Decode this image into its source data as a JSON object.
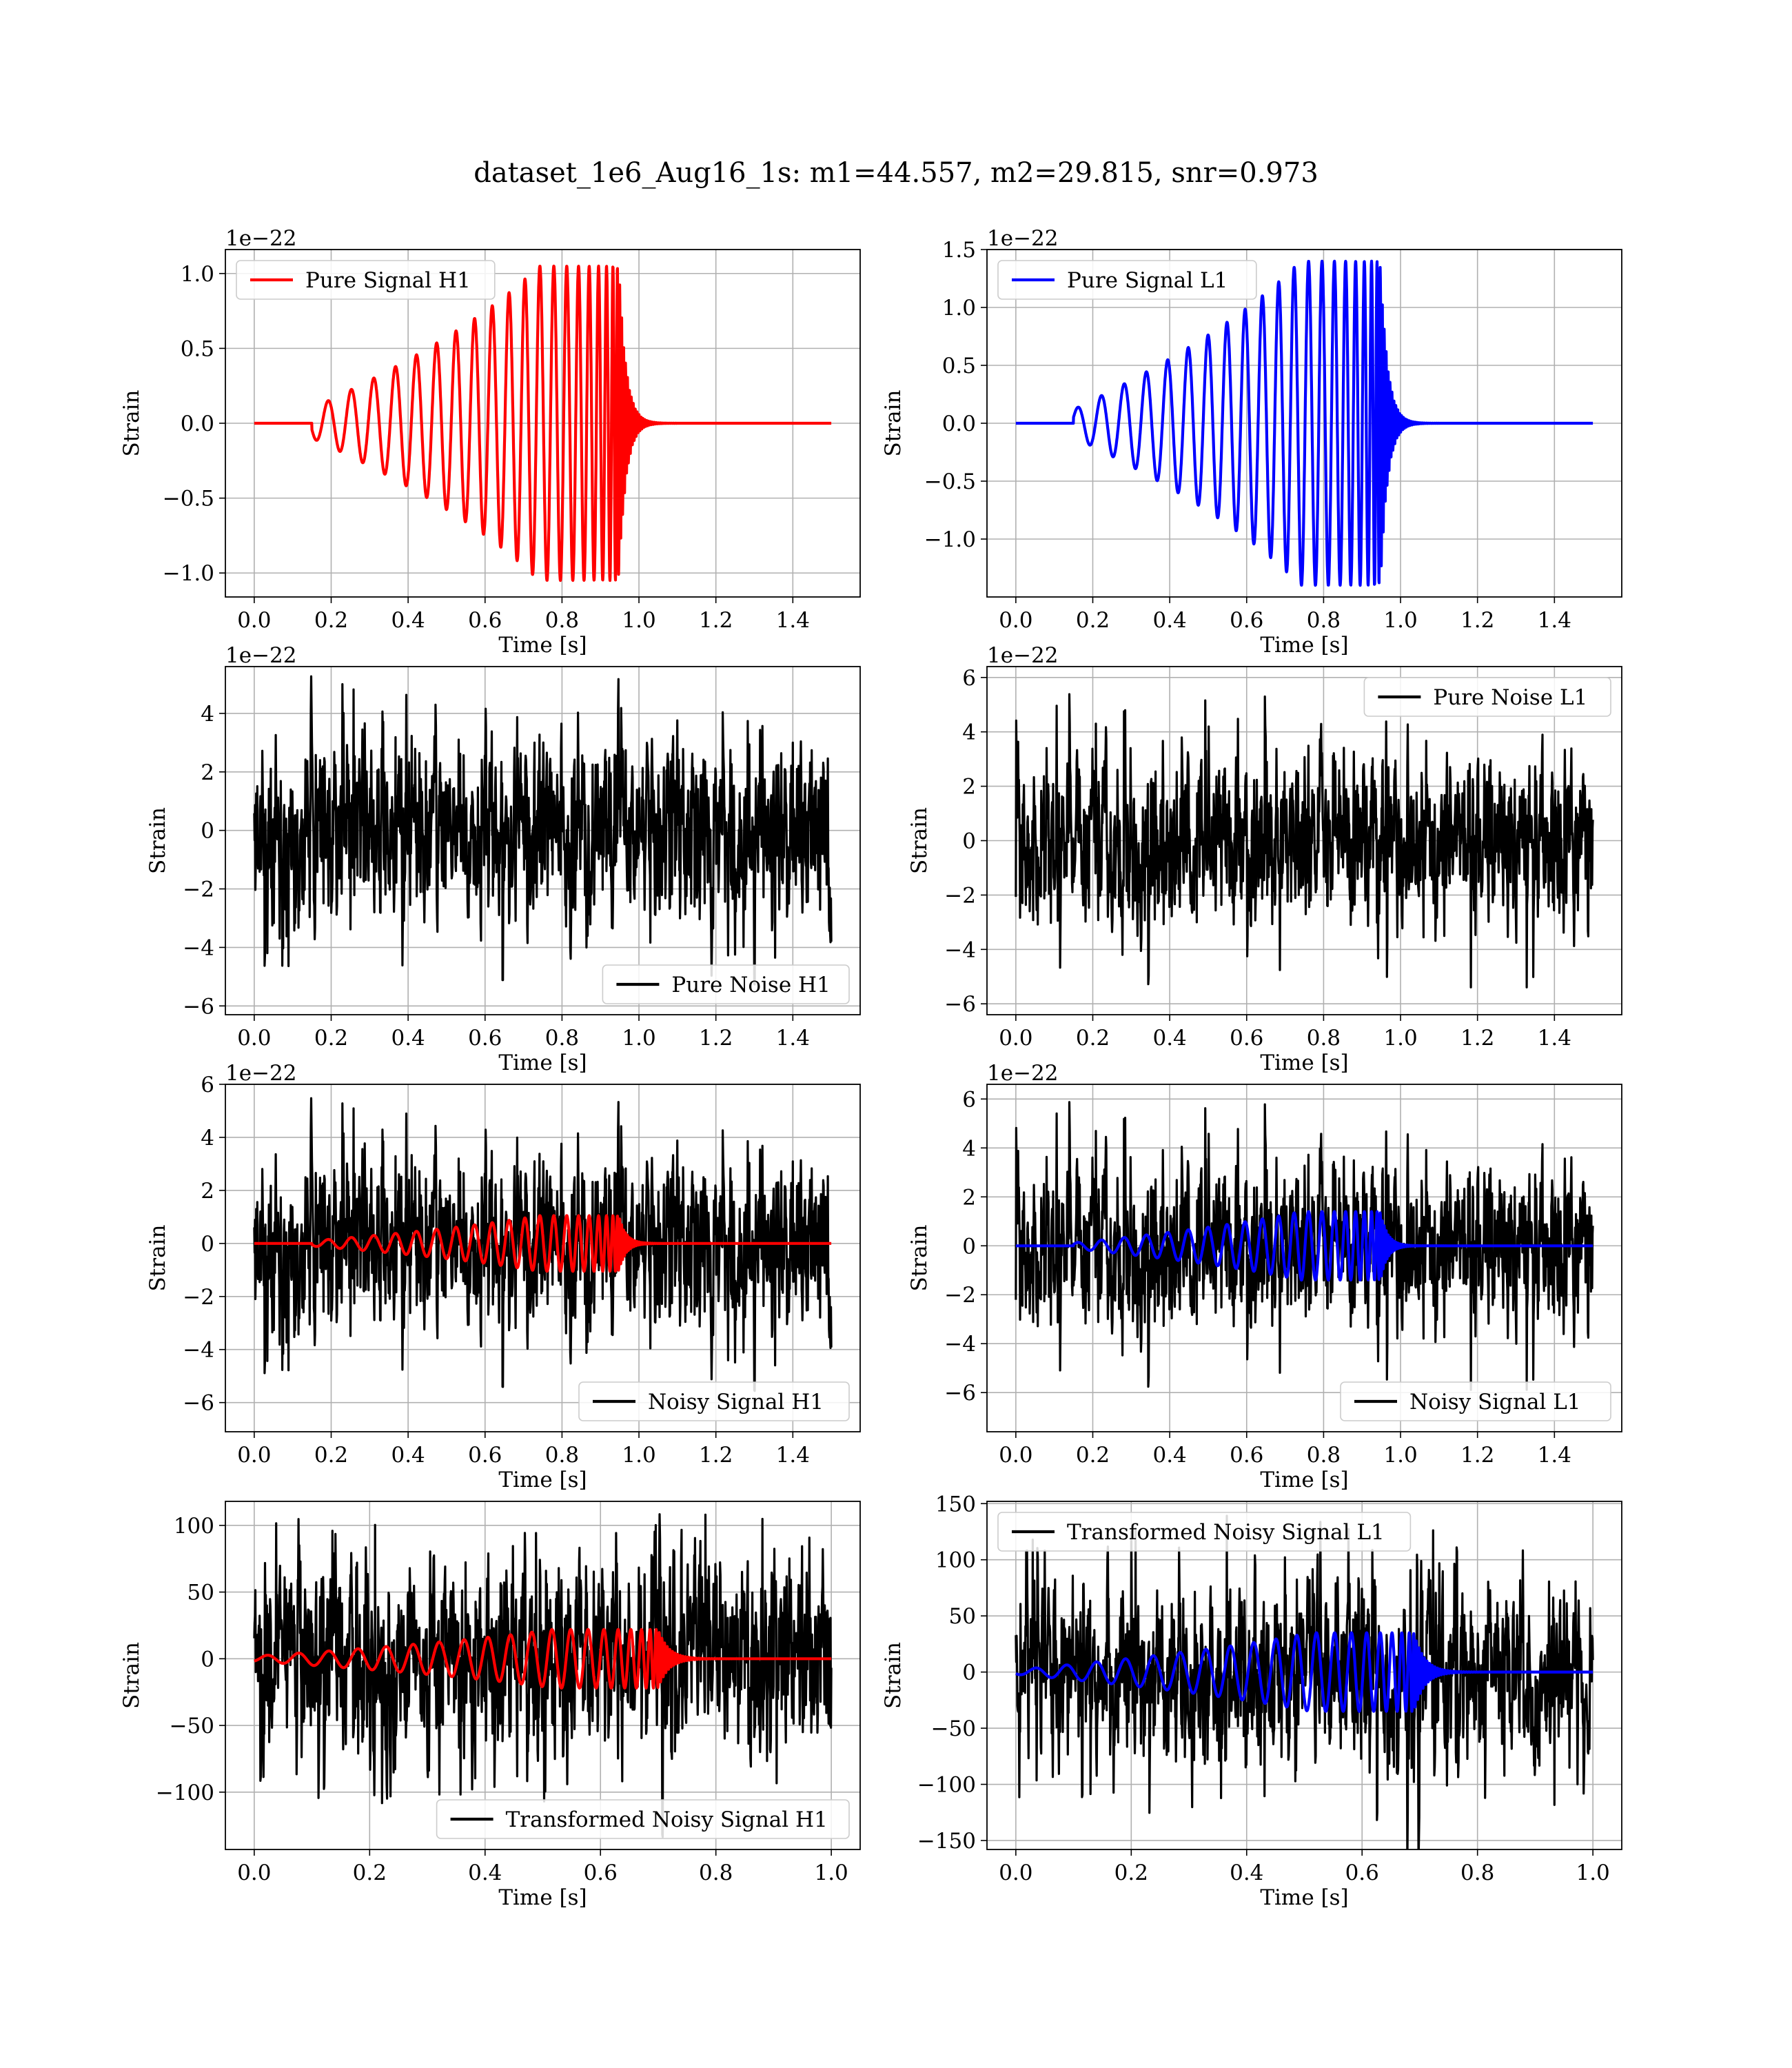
{
  "suptitle": "dataset_1e6_Aug16_1s: m1=44.557, m2=29.815, snr=0.973",
  "colors": {
    "h1_signal": "#ff0000",
    "l1_signal": "#0000ff",
    "noise": "#000000",
    "grid": "#b0b0b0"
  },
  "chart_data": [
    {
      "type": "line",
      "panel": "row1-left",
      "xlabel": "Time [s]",
      "ylabel": "Strain",
      "offset_text": "1e−22",
      "xlim": [
        -0.075,
        1.575
      ],
      "ylim": [
        -1.16,
        1.16
      ],
      "xticks": [
        0.0,
        0.2,
        0.4,
        0.6,
        0.8,
        1.0,
        1.2,
        1.4
      ],
      "xtick_labels": [
        "0.0",
        "0.2",
        "0.4",
        "0.6",
        "0.8",
        "1.0",
        "1.2",
        "1.4"
      ],
      "yticks": [
        -1.0,
        -0.5,
        0.0,
        0.5,
        1.0
      ],
      "ytick_labels": [
        "−1.0",
        "−0.5",
        "0.0",
        "0.5",
        "1.0"
      ],
      "grid": true,
      "legend_loc": "upper left",
      "series": [
        {
          "name": "Pure Signal H1",
          "kind": "chirp",
          "color": "#ff0000",
          "t_start": 0.15,
          "t_merge": 0.948,
          "t_end": 1.5,
          "amp_start": 0.1,
          "amp_merge": 1.05,
          "f_start": 16,
          "f_merge": 200,
          "invert": false,
          "noise_amp": 0
        }
      ]
    },
    {
      "type": "line",
      "panel": "row1-right",
      "xlabel": "Time [s]",
      "ylabel": "Strain",
      "offset_text": "1e−22",
      "xlim": [
        -0.075,
        1.575
      ],
      "ylim": [
        -1.5,
        1.5
      ],
      "xticks": [
        0.0,
        0.2,
        0.4,
        0.6,
        0.8,
        1.0,
        1.2,
        1.4
      ],
      "xtick_labels": [
        "0.0",
        "0.2",
        "0.4",
        "0.6",
        "0.8",
        "1.0",
        "1.2",
        "1.4"
      ],
      "yticks": [
        -1.0,
        -0.5,
        0.0,
        0.5,
        1.0,
        1.5
      ],
      "ytick_labels": [
        "−1.0",
        "−0.5",
        "0.0",
        "0.5",
        "1.0",
        "1.5"
      ],
      "grid": true,
      "legend_loc": "upper left",
      "series": [
        {
          "name": "Pure Signal L1",
          "kind": "chirp",
          "color": "#0000ff",
          "t_start": 0.15,
          "t_merge": 0.948,
          "t_end": 1.5,
          "amp_start": 0.12,
          "amp_merge": 1.4,
          "f_start": 16,
          "f_merge": 200,
          "invert": true,
          "noise_amp": 0
        }
      ]
    },
    {
      "type": "line",
      "panel": "row2-left",
      "xlabel": "Time [s]",
      "ylabel": "Strain",
      "offset_text": "1e−22",
      "xlim": [
        -0.075,
        1.575
      ],
      "ylim": [
        -6.3,
        5.6
      ],
      "xticks": [
        0.0,
        0.2,
        0.4,
        0.6,
        0.8,
        1.0,
        1.2,
        1.4
      ],
      "xtick_labels": [
        "0.0",
        "0.2",
        "0.4",
        "0.6",
        "0.8",
        "1.0",
        "1.2",
        "1.4"
      ],
      "yticks": [
        -6,
        -4,
        -2,
        0,
        2,
        4
      ],
      "ytick_labels": [
        "−6",
        "−4",
        "−2",
        "0",
        "2",
        "4"
      ],
      "grid": true,
      "legend_loc": "lower right",
      "series": [
        {
          "name": "Pure Noise H1",
          "kind": "noise",
          "color": "#000000",
          "t_start": 0.0,
          "t_end": 1.5,
          "noise_amp": 1.6,
          "noise_peak": 5.3,
          "seed": 11
        }
      ]
    },
    {
      "type": "line",
      "panel": "row2-right",
      "xlabel": "Time [s]",
      "ylabel": "Strain",
      "offset_text": "1e−22",
      "xlim": [
        -0.075,
        1.575
      ],
      "ylim": [
        -6.4,
        6.4
      ],
      "xticks": [
        0.0,
        0.2,
        0.4,
        0.6,
        0.8,
        1.0,
        1.2,
        1.4
      ],
      "xtick_labels": [
        "0.0",
        "0.2",
        "0.4",
        "0.6",
        "0.8",
        "1.0",
        "1.2",
        "1.4"
      ],
      "yticks": [
        -6,
        -4,
        -2,
        0,
        2,
        4,
        6
      ],
      "ytick_labels": [
        "−6",
        "−4",
        "−2",
        "0",
        "2",
        "4",
        "6"
      ],
      "grid": true,
      "legend_loc": "upper right",
      "series": [
        {
          "name": "Pure Noise L1",
          "kind": "noise",
          "color": "#000000",
          "t_start": 0.0,
          "t_end": 1.5,
          "noise_amp": 1.5,
          "noise_peak": 5.5,
          "seed": 23
        }
      ]
    },
    {
      "type": "line",
      "panel": "row3-left",
      "xlabel": "Time [s]",
      "ylabel": "Strain",
      "offset_text": "1e−22",
      "xlim": [
        -0.075,
        1.575
      ],
      "ylim": [
        -7.1,
        6.0
      ],
      "xticks": [
        0.0,
        0.2,
        0.4,
        0.6,
        0.8,
        1.0,
        1.2,
        1.4
      ],
      "xtick_labels": [
        "0.0",
        "0.2",
        "0.4",
        "0.6",
        "0.8",
        "1.0",
        "1.2",
        "1.4"
      ],
      "yticks": [
        -6,
        -4,
        -2,
        0,
        2,
        4,
        6
      ],
      "ytick_labels": [
        "−6",
        "−4",
        "−2",
        "0",
        "2",
        "4",
        "6"
      ],
      "grid": true,
      "legend_loc": "lower right",
      "series": [
        {
          "name": "Noisy Signal H1",
          "kind": "noise",
          "color": "#000000",
          "t_start": 0.0,
          "t_end": 1.5,
          "noise_amp": 1.65,
          "noise_peak": 5.6,
          "seed": 11
        },
        {
          "name": "",
          "kind": "chirp",
          "color": "#ff0000",
          "t_start": 0.15,
          "t_merge": 0.948,
          "t_end": 1.5,
          "amp_start": 0.1,
          "amp_merge": 1.05,
          "f_start": 16,
          "f_merge": 200,
          "invert": false,
          "noise_amp": 0
        }
      ]
    },
    {
      "type": "line",
      "panel": "row3-right",
      "xlabel": "Time [s]",
      "ylabel": "Strain",
      "offset_text": "1e−22",
      "xlim": [
        -0.075,
        1.575
      ],
      "ylim": [
        -7.6,
        6.6
      ],
      "xticks": [
        0.0,
        0.2,
        0.4,
        0.6,
        0.8,
        1.0,
        1.2,
        1.4
      ],
      "xtick_labels": [
        "0.0",
        "0.2",
        "0.4",
        "0.6",
        "0.8",
        "1.0",
        "1.2",
        "1.4"
      ],
      "yticks": [
        -6,
        -4,
        -2,
        0,
        2,
        4,
        6
      ],
      "ytick_labels": [
        "−6",
        "−4",
        "−2",
        "0",
        "2",
        "4",
        "6"
      ],
      "grid": true,
      "legend_loc": "lower right",
      "series": [
        {
          "name": "Noisy Signal L1",
          "kind": "noise",
          "color": "#000000",
          "t_start": 0.0,
          "t_end": 1.5,
          "noise_amp": 1.6,
          "noise_peak": 6.0,
          "seed": 23
        },
        {
          "name": "",
          "kind": "chirp",
          "color": "#0000ff",
          "t_start": 0.15,
          "t_merge": 0.948,
          "t_end": 1.5,
          "amp_start": 0.12,
          "amp_merge": 1.4,
          "f_start": 16,
          "f_merge": 200,
          "invert": true,
          "noise_amp": 0
        }
      ]
    },
    {
      "type": "line",
      "panel": "row4-left",
      "xlabel": "Time [s]",
      "ylabel": "Strain",
      "offset_text": "",
      "xlim": [
        -0.05,
        1.05
      ],
      "ylim": [
        -143,
        118
      ],
      "xticks": [
        0.0,
        0.2,
        0.4,
        0.6,
        0.8,
        1.0
      ],
      "xtick_labels": [
        "0.0",
        "0.2",
        "0.4",
        "0.6",
        "0.8",
        "1.0"
      ],
      "yticks": [
        -100,
        -50,
        0,
        50,
        100
      ],
      "ytick_labels": [
        "−100",
        "−50",
        "0",
        "50",
        "100"
      ],
      "grid": true,
      "legend_loc": "lower right",
      "series": [
        {
          "name": "Transformed Noisy Signal H1",
          "kind": "noise",
          "color": "#000000",
          "t_start": 0.0,
          "t_end": 1.0,
          "noise_amp": 36,
          "noise_peak": 112,
          "seed": 37,
          "burst_at": 0.7
        },
        {
          "name": "",
          "kind": "chirp",
          "color": "#ff0000",
          "t_start": 0.0,
          "t_merge": 0.7,
          "t_end": 1.0,
          "amp_start": 2,
          "amp_merge": 22,
          "f_start": 18,
          "f_merge": 220,
          "invert": false,
          "noise_amp": 0
        }
      ]
    },
    {
      "type": "line",
      "panel": "row4-right",
      "xlabel": "Time [s]",
      "ylabel": "Strain",
      "offset_text": "",
      "xlim": [
        -0.05,
        1.05
      ],
      "ylim": [
        -158,
        152
      ],
      "xticks": [
        0.0,
        0.2,
        0.4,
        0.6,
        0.8,
        1.0
      ],
      "xtick_labels": [
        "0.0",
        "0.2",
        "0.4",
        "0.6",
        "0.8",
        "1.0"
      ],
      "yticks": [
        -150,
        -100,
        -50,
        0,
        50,
        100,
        150
      ],
      "ytick_labels": [
        "−150",
        "−100",
        "−50",
        "0",
        "50",
        "100",
        "150"
      ],
      "grid": true,
      "legend_loc": "upper left",
      "series": [
        {
          "name": "Transformed Noisy Signal L1",
          "kind": "noise",
          "color": "#000000",
          "t_start": 0.0,
          "t_end": 1.0,
          "noise_amp": 40,
          "noise_peak": 140,
          "seed": 41,
          "burst_at": 0.69
        },
        {
          "name": "",
          "kind": "chirp",
          "color": "#0000ff",
          "t_start": 0.0,
          "t_merge": 0.69,
          "t_end": 1.0,
          "amp_start": 2,
          "amp_merge": 35,
          "f_start": 18,
          "f_merge": 220,
          "invert": true,
          "noise_amp": 0
        }
      ]
    }
  ]
}
